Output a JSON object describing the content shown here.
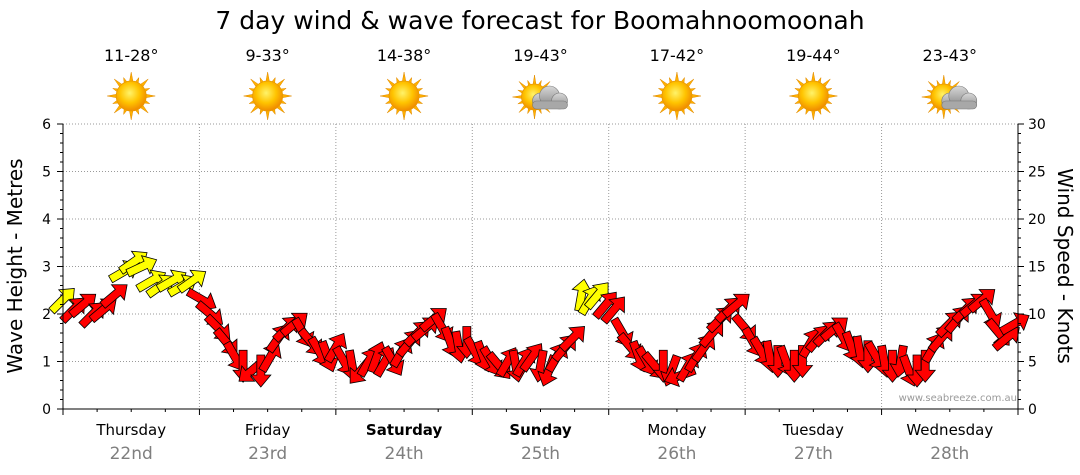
{
  "chart_data": {
    "type": "line",
    "title": "7 day wind & wave forecast for Boomahnoomoonah",
    "ylabel_left": "Wave Height - Metres",
    "ylabel_right": "Wind Speed - Knots",
    "ylim_left": [
      0,
      6
    ],
    "ylim_right": [
      0,
      30
    ],
    "left_ticks": [
      "0",
      "1",
      "2",
      "3",
      "4",
      "5",
      "6"
    ],
    "right_ticks": [
      "0",
      "5",
      "10",
      "15",
      "20",
      "25",
      "30"
    ],
    "grid": true,
    "watermark": "www.seabreeze.com.au",
    "days": [
      {
        "day": "Thursday",
        "date": "22nd",
        "temp": "11-28°",
        "weather": "sunny-icon",
        "bold": false
      },
      {
        "day": "Friday",
        "date": "23rd",
        "temp": "9-33°",
        "weather": "sunny-icon",
        "bold": false
      },
      {
        "day": "Saturday",
        "date": "24th",
        "temp": "14-38°",
        "weather": "sunny-icon",
        "bold": true
      },
      {
        "day": "Sunday",
        "date": "25th",
        "temp": "19-43°",
        "weather": "partly-cloudy-icon",
        "bold": true
      },
      {
        "day": "Monday",
        "date": "26th",
        "temp": "17-42°",
        "weather": "sunny-icon",
        "bold": false
      },
      {
        "day": "Tuesday",
        "date": "27th",
        "temp": "19-44°",
        "weather": "sunny-icon",
        "bold": false
      },
      {
        "day": "Wednesday",
        "date": "28th",
        "temp": "23-43°",
        "weather": "partly-cloudy-icon",
        "bold": false
      }
    ],
    "series": [
      {
        "series_type": "wind-arrows",
        "value_axis": "right",
        "x_unit": "day",
        "colors": {
          "strong": "#ffff00",
          "moderate": "#ff0000",
          "outline": "#000000"
        },
        "points": [
          {
            "x": 0.0,
            "v": 11.5,
            "dir": 45,
            "c": "y"
          },
          {
            "x": 0.08,
            "v": 10.5,
            "dir": 45,
            "c": "r"
          },
          {
            "x": 0.15,
            "v": 11.0,
            "dir": 40,
            "c": "r"
          },
          {
            "x": 0.22,
            "v": 10.0,
            "dir": 45,
            "c": "r"
          },
          {
            "x": 0.3,
            "v": 10.5,
            "dir": 40,
            "c": "r"
          },
          {
            "x": 0.38,
            "v": 12.0,
            "dir": 40,
            "c": "r"
          },
          {
            "x": 0.45,
            "v": 14.5,
            "dir": 30,
            "c": "y"
          },
          {
            "x": 0.52,
            "v": 15.5,
            "dir": 35,
            "c": "y"
          },
          {
            "x": 0.58,
            "v": 15.0,
            "dir": 25,
            "c": "y"
          },
          {
            "x": 0.65,
            "v": 13.5,
            "dir": 30,
            "c": "y"
          },
          {
            "x": 0.72,
            "v": 13.0,
            "dir": 35,
            "c": "y"
          },
          {
            "x": 0.8,
            "v": 13.5,
            "dir": 30,
            "c": "y"
          },
          {
            "x": 0.88,
            "v": 13.0,
            "dir": 30,
            "c": "y"
          },
          {
            "x": 0.95,
            "v": 13.5,
            "dir": 35,
            "c": "y"
          },
          {
            "x": 1.02,
            "v": 11.5,
            "dir": 330,
            "c": "r"
          },
          {
            "x": 1.08,
            "v": 10.0,
            "dir": 320,
            "c": "r"
          },
          {
            "x": 1.14,
            "v": 8.5,
            "dir": 315,
            "c": "r"
          },
          {
            "x": 1.2,
            "v": 7.0,
            "dir": 310,
            "c": "r"
          },
          {
            "x": 1.26,
            "v": 5.5,
            "dir": 300,
            "c": "r"
          },
          {
            "x": 1.32,
            "v": 4.5,
            "dir": 270,
            "c": "r"
          },
          {
            "x": 1.38,
            "v": 4.0,
            "dir": 220,
            "c": "r"
          },
          {
            "x": 1.45,
            "v": 4.0,
            "dir": 270,
            "c": "r"
          },
          {
            "x": 1.52,
            "v": 5.5,
            "dir": 60,
            "c": "r"
          },
          {
            "x": 1.58,
            "v": 7.5,
            "dir": 55,
            "c": "r"
          },
          {
            "x": 1.64,
            "v": 8.5,
            "dir": 45,
            "c": "r"
          },
          {
            "x": 1.7,
            "v": 9.0,
            "dir": 40,
            "c": "r"
          },
          {
            "x": 1.76,
            "v": 8.0,
            "dir": 300,
            "c": "r"
          },
          {
            "x": 1.82,
            "v": 7.0,
            "dir": 310,
            "c": "r"
          },
          {
            "x": 1.88,
            "v": 6.0,
            "dir": 300,
            "c": "r"
          },
          {
            "x": 1.94,
            "v": 5.5,
            "dir": 290,
            "c": "r"
          },
          {
            "x": 2.0,
            "v": 6.5,
            "dir": 60,
            "c": "r"
          },
          {
            "x": 2.06,
            "v": 5.0,
            "dir": 300,
            "c": "r"
          },
          {
            "x": 2.12,
            "v": 4.5,
            "dir": 280,
            "c": "r"
          },
          {
            "x": 2.18,
            "v": 4.0,
            "dir": 230,
            "c": "r"
          },
          {
            "x": 2.24,
            "v": 5.0,
            "dir": 60,
            "c": "r"
          },
          {
            "x": 2.3,
            "v": 5.5,
            "dir": 70,
            "c": "r"
          },
          {
            "x": 2.36,
            "v": 5.0,
            "dir": 60,
            "c": "r"
          },
          {
            "x": 2.42,
            "v": 5.0,
            "dir": 300,
            "c": "r"
          },
          {
            "x": 2.48,
            "v": 6.0,
            "dir": 60,
            "c": "r"
          },
          {
            "x": 2.54,
            "v": 7.0,
            "dir": 50,
            "c": "r"
          },
          {
            "x": 2.6,
            "v": 8.0,
            "dir": 45,
            "c": "r"
          },
          {
            "x": 2.66,
            "v": 8.5,
            "dir": 40,
            "c": "r"
          },
          {
            "x": 2.72,
            "v": 9.5,
            "dir": 40,
            "c": "r"
          },
          {
            "x": 2.78,
            "v": 8.5,
            "dir": 300,
            "c": "r"
          },
          {
            "x": 2.84,
            "v": 7.0,
            "dir": 290,
            "c": "r"
          },
          {
            "x": 2.9,
            "v": 6.5,
            "dir": 280,
            "c": "r"
          },
          {
            "x": 2.96,
            "v": 7.0,
            "dir": 270,
            "c": "r"
          },
          {
            "x": 3.02,
            "v": 6.0,
            "dir": 300,
            "c": "r"
          },
          {
            "x": 3.08,
            "v": 5.5,
            "dir": 290,
            "c": "r"
          },
          {
            "x": 3.14,
            "v": 5.0,
            "dir": 300,
            "c": "r"
          },
          {
            "x": 3.2,
            "v": 4.5,
            "dir": 310,
            "c": "r"
          },
          {
            "x": 3.26,
            "v": 5.0,
            "dir": 60,
            "c": "r"
          },
          {
            "x": 3.32,
            "v": 4.5,
            "dir": 280,
            "c": "r"
          },
          {
            "x": 3.38,
            "v": 5.0,
            "dir": 60,
            "c": "r"
          },
          {
            "x": 3.44,
            "v": 5.5,
            "dir": 55,
            "c": "r"
          },
          {
            "x": 3.5,
            "v": 4.5,
            "dir": 260,
            "c": "r"
          },
          {
            "x": 3.56,
            "v": 4.0,
            "dir": 250,
            "c": "r"
          },
          {
            "x": 3.62,
            "v": 5.5,
            "dir": 60,
            "c": "r"
          },
          {
            "x": 3.68,
            "v": 6.5,
            "dir": 50,
            "c": "r"
          },
          {
            "x": 3.74,
            "v": 7.5,
            "dir": 45,
            "c": "r"
          },
          {
            "x": 3.8,
            "v": 12.0,
            "dir": 80,
            "c": "y"
          },
          {
            "x": 3.86,
            "v": 11.5,
            "dir": 60,
            "c": "y"
          },
          {
            "x": 3.92,
            "v": 12.0,
            "dir": 50,
            "c": "y"
          },
          {
            "x": 3.98,
            "v": 11.0,
            "dir": 50,
            "c": "r"
          },
          {
            "x": 4.04,
            "v": 10.5,
            "dir": 50,
            "c": "r"
          },
          {
            "x": 4.1,
            "v": 8.0,
            "dir": 300,
            "c": "r"
          },
          {
            "x": 4.16,
            "v": 6.5,
            "dir": 310,
            "c": "r"
          },
          {
            "x": 4.22,
            "v": 5.5,
            "dir": 290,
            "c": "r"
          },
          {
            "x": 4.28,
            "v": 5.0,
            "dir": 300,
            "c": "r"
          },
          {
            "x": 4.34,
            "v": 4.5,
            "dir": 310,
            "c": "r"
          },
          {
            "x": 4.4,
            "v": 4.5,
            "dir": 270,
            "c": "r"
          },
          {
            "x": 4.46,
            "v": 4.0,
            "dir": 250,
            "c": "r"
          },
          {
            "x": 4.52,
            "v": 3.5,
            "dir": 200,
            "c": "r"
          },
          {
            "x": 4.58,
            "v": 4.5,
            "dir": 60,
            "c": "r"
          },
          {
            "x": 4.64,
            "v": 5.5,
            "dir": 60,
            "c": "r"
          },
          {
            "x": 4.7,
            "v": 6.5,
            "dir": 55,
            "c": "r"
          },
          {
            "x": 4.76,
            "v": 8.0,
            "dir": 50,
            "c": "r"
          },
          {
            "x": 4.82,
            "v": 9.5,
            "dir": 45,
            "c": "r"
          },
          {
            "x": 4.88,
            "v": 10.5,
            "dir": 45,
            "c": "r"
          },
          {
            "x": 4.94,
            "v": 11.0,
            "dir": 40,
            "c": "r"
          },
          {
            "x": 5.0,
            "v": 8.5,
            "dir": 310,
            "c": "r"
          },
          {
            "x": 5.06,
            "v": 7.0,
            "dir": 300,
            "c": "r"
          },
          {
            "x": 5.12,
            "v": 6.0,
            "dir": 300,
            "c": "r"
          },
          {
            "x": 5.18,
            "v": 5.5,
            "dir": 280,
            "c": "r"
          },
          {
            "x": 5.24,
            "v": 5.0,
            "dir": 270,
            "c": "r"
          },
          {
            "x": 5.3,
            "v": 5.0,
            "dir": 290,
            "c": "r"
          },
          {
            "x": 5.36,
            "v": 4.5,
            "dir": 270,
            "c": "r"
          },
          {
            "x": 5.42,
            "v": 5.0,
            "dir": 270,
            "c": "r"
          },
          {
            "x": 5.48,
            "v": 7.0,
            "dir": 60,
            "c": "r"
          },
          {
            "x": 5.54,
            "v": 7.5,
            "dir": 50,
            "c": "r"
          },
          {
            "x": 5.6,
            "v": 8.0,
            "dir": 45,
            "c": "r"
          },
          {
            "x": 5.66,
            "v": 8.5,
            "dir": 40,
            "c": "r"
          },
          {
            "x": 5.72,
            "v": 7.5,
            "dir": 300,
            "c": "r"
          },
          {
            "x": 5.78,
            "v": 6.5,
            "dir": 290,
            "c": "r"
          },
          {
            "x": 5.84,
            "v": 6.0,
            "dir": 280,
            "c": "r"
          },
          {
            "x": 5.9,
            "v": 5.5,
            "dir": 270,
            "c": "r"
          },
          {
            "x": 5.96,
            "v": 5.5,
            "dir": 300,
            "c": "r"
          },
          {
            "x": 6.02,
            "v": 5.0,
            "dir": 280,
            "c": "r"
          },
          {
            "x": 6.08,
            "v": 4.5,
            "dir": 270,
            "c": "r"
          },
          {
            "x": 6.14,
            "v": 5.0,
            "dir": 260,
            "c": "r"
          },
          {
            "x": 6.2,
            "v": 4.0,
            "dir": 290,
            "c": "r"
          },
          {
            "x": 6.26,
            "v": 4.0,
            "dir": 270,
            "c": "r"
          },
          {
            "x": 6.32,
            "v": 4.5,
            "dir": 270,
            "c": "r"
          },
          {
            "x": 6.38,
            "v": 6.5,
            "dir": 60,
            "c": "r"
          },
          {
            "x": 6.44,
            "v": 7.5,
            "dir": 50,
            "c": "r"
          },
          {
            "x": 6.5,
            "v": 9.0,
            "dir": 45,
            "c": "r"
          },
          {
            "x": 6.56,
            "v": 9.5,
            "dir": 50,
            "c": "r"
          },
          {
            "x": 6.62,
            "v": 10.5,
            "dir": 45,
            "c": "r"
          },
          {
            "x": 6.68,
            "v": 11.0,
            "dir": 40,
            "c": "r"
          },
          {
            "x": 6.74,
            "v": 11.5,
            "dir": 40,
            "c": "r"
          },
          {
            "x": 6.8,
            "v": 10.0,
            "dir": 300,
            "c": "r"
          },
          {
            "x": 6.86,
            "v": 8.0,
            "dir": 310,
            "c": "r"
          },
          {
            "x": 6.92,
            "v": 7.5,
            "dir": 40,
            "c": "r"
          },
          {
            "x": 6.98,
            "v": 9.0,
            "dir": 30,
            "c": "r"
          }
        ]
      }
    ]
  }
}
